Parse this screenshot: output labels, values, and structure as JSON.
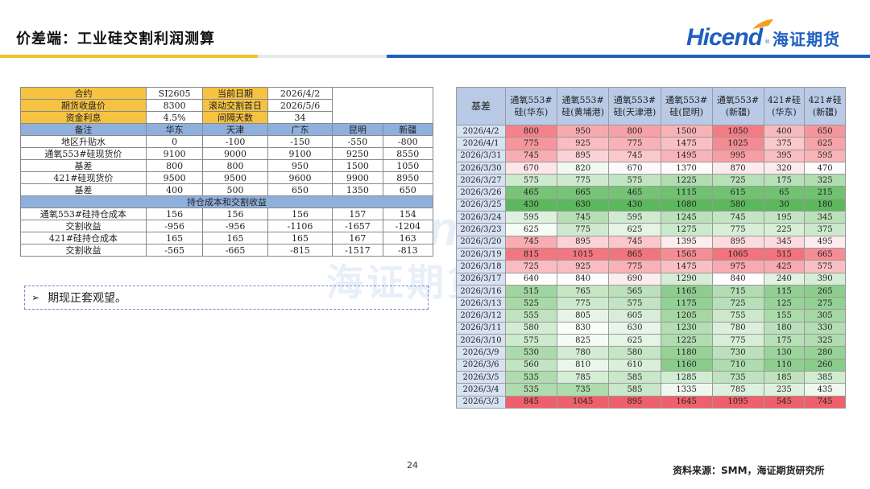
{
  "header": {
    "title": "价差端：工业硅交割利润测算",
    "logo_en": "Hicend",
    "logo_reg": "®",
    "logo_cn": "海证期货",
    "colors": {
      "brand_blue": "#1f5fbf",
      "accent_yellow": "#f2c230"
    }
  },
  "watermark": {
    "en": "Hicend",
    "cn": "海证期货"
  },
  "left_table": {
    "info": [
      {
        "k1": "合约",
        "v1": "SI2605",
        "k2": "当前日期",
        "v2": "2026/4/2"
      },
      {
        "k1": "期货收盘价",
        "v1": "8300",
        "k2": "滚动交割首日",
        "v2": "2026/5/6"
      },
      {
        "k1": "资金利息",
        "v1": "4.5%",
        "k2": "间隔天数",
        "v2": "34"
      }
    ],
    "header": [
      "备注",
      "华东",
      "天津",
      "广东",
      "昆明",
      "新疆"
    ],
    "rows": [
      {
        "label": "地区升贴水",
        "values": [
          "0",
          "-100",
          "-150",
          "-550",
          "-800"
        ]
      },
      {
        "label": "通氧553#硅现货价",
        "values": [
          "9100",
          "9000",
          "9100",
          "9250",
          "8550"
        ]
      },
      {
        "label": "基差",
        "values": [
          "800",
          "800",
          "950",
          "1500",
          "1050"
        ]
      },
      {
        "label": "421#硅现货价",
        "values": [
          "9500",
          "9500",
          "9600",
          "9900",
          "8950"
        ]
      },
      {
        "label": "基差",
        "values": [
          "400",
          "500",
          "650",
          "1350",
          "650"
        ]
      }
    ],
    "section_title": "持仓成本和交割收益",
    "rows2": [
      {
        "label": "通氧553#硅持仓成本",
        "values": [
          "156",
          "156",
          "156",
          "157",
          "154"
        ]
      },
      {
        "label": "交割收益",
        "values": [
          "-956",
          "-956",
          "-1106",
          "-1657",
          "-1204"
        ]
      },
      {
        "label": "421#硅持仓成本",
        "values": [
          "165",
          "165",
          "165",
          "167",
          "163"
        ]
      },
      {
        "label": "交割收益",
        "values": [
          "-565",
          "-665",
          "-815",
          "-1517",
          "-813"
        ]
      }
    ]
  },
  "note": {
    "arrow": "➢",
    "text": "期现正套观望。"
  },
  "right_table": {
    "header": [
      "基差",
      "通氧553#\n硅(华东)",
      "通氧553#\n硅(黄埔港)",
      "通氧553#\n硅(天津港)",
      "通氧553#\n硅(昆明)",
      "通氧553#\n(新疆)",
      "421#硅\n(华东)",
      "421#硅\n(新疆)"
    ],
    "rows": [
      {
        "date": "2026/4/2",
        "values": [
          "800",
          "950",
          "800",
          "1500",
          "1050",
          "400",
          "650"
        ]
      },
      {
        "date": "2026/4/1",
        "values": [
          "775",
          "925",
          "775",
          "1475",
          "1025",
          "375",
          "625"
        ]
      },
      {
        "date": "2026/3/31",
        "values": [
          "745",
          "895",
          "745",
          "1495",
          "995",
          "395",
          "595"
        ]
      },
      {
        "date": "2026/3/30",
        "values": [
          "670",
          "820",
          "670",
          "1370",
          "870",
          "320",
          "470"
        ]
      },
      {
        "date": "2026/3/27",
        "values": [
          "575",
          "775",
          "575",
          "1225",
          "725",
          "175",
          "325"
        ]
      },
      {
        "date": "2026/3/26",
        "values": [
          "465",
          "665",
          "465",
          "1115",
          "615",
          "65",
          "215"
        ]
      },
      {
        "date": "2026/3/25",
        "values": [
          "430",
          "630",
          "430",
          "1080",
          "580",
          "30",
          "180"
        ]
      },
      {
        "date": "2026/3/24",
        "values": [
          "595",
          "745",
          "595",
          "1245",
          "745",
          "195",
          "345"
        ]
      },
      {
        "date": "2026/3/23",
        "values": [
          "625",
          "775",
          "625",
          "1275",
          "775",
          "225",
          "375"
        ]
      },
      {
        "date": "2026/3/20",
        "values": [
          "745",
          "895",
          "745",
          "1395",
          "895",
          "345",
          "495"
        ]
      },
      {
        "date": "2026/3/19",
        "values": [
          "815",
          "1015",
          "865",
          "1565",
          "1065",
          "515",
          "665"
        ]
      },
      {
        "date": "2026/3/18",
        "values": [
          "725",
          "925",
          "775",
          "1475",
          "975",
          "425",
          "575"
        ]
      },
      {
        "date": "2026/3/17",
        "values": [
          "640",
          "840",
          "690",
          "1290",
          "840",
          "240",
          "390"
        ]
      },
      {
        "date": "2026/3/16",
        "values": [
          "515",
          "765",
          "565",
          "1165",
          "715",
          "115",
          "265"
        ]
      },
      {
        "date": "2026/3/13",
        "values": [
          "525",
          "775",
          "575",
          "1175",
          "725",
          "125",
          "275"
        ]
      },
      {
        "date": "2026/3/12",
        "values": [
          "555",
          "805",
          "605",
          "1205",
          "755",
          "155",
          "305"
        ]
      },
      {
        "date": "2026/3/11",
        "values": [
          "580",
          "830",
          "630",
          "1230",
          "780",
          "180",
          "330"
        ]
      },
      {
        "date": "2026/3/10",
        "values": [
          "575",
          "825",
          "625",
          "1225",
          "775",
          "175",
          "325"
        ]
      },
      {
        "date": "2026/3/9",
        "values": [
          "530",
          "780",
          "580",
          "1180",
          "730",
          "130",
          "280"
        ]
      },
      {
        "date": "2026/3/6",
        "values": [
          "560",
          "810",
          "610",
          "1160",
          "710",
          "110",
          "260"
        ]
      },
      {
        "date": "2026/3/5",
        "values": [
          "535",
          "785",
          "585",
          "1285",
          "735",
          "185",
          "385"
        ]
      },
      {
        "date": "2026/3/4",
        "values": [
          "535",
          "735",
          "585",
          "1335",
          "785",
          "235",
          "435"
        ]
      },
      {
        "date": "2026/3/3",
        "values": [
          "845",
          "1045",
          "895",
          "1645",
          "1095",
          "545",
          "745"
        ]
      }
    ],
    "heat_colors": {
      "low": "#5cb85c",
      "mid": "#ffffff",
      "high": "#f0606a"
    }
  },
  "footer": {
    "page": "24",
    "source": "资料来源：SMM，海证期货研究所"
  }
}
